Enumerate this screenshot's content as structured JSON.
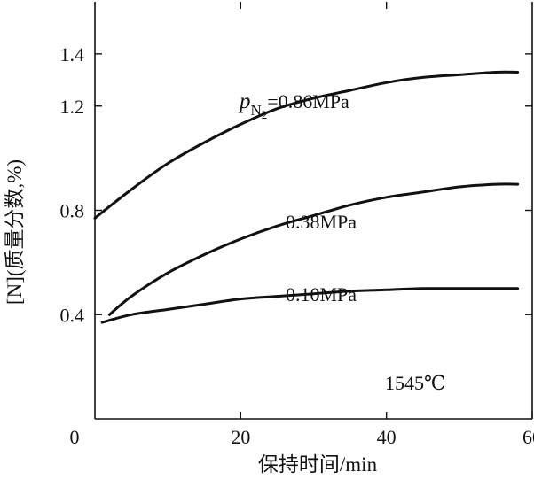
{
  "chart_data": {
    "type": "line",
    "title": "",
    "xlabel": "保持时间/min",
    "ylabel": "[N](质量分数,%)",
    "xlim": [
      0,
      60
    ],
    "ylim": [
      0,
      1.6
    ],
    "x_ticks": [
      20,
      40,
      60
    ],
    "y_ticks": [
      0.4,
      0.8,
      1.2,
      1.4
    ],
    "origin_label": "0",
    "grid": false,
    "series": [
      {
        "label_main": "0.86MPa",
        "label_prefix": "p",
        "label_sub": "N",
        "label_subsub": "2",
        "label_eq": "=",
        "x": [
          0,
          5,
          10,
          15,
          20,
          25,
          30,
          35,
          40,
          45,
          50,
          55,
          58
        ],
        "y": [
          0.77,
          0.88,
          0.98,
          1.06,
          1.13,
          1.19,
          1.23,
          1.26,
          1.29,
          1.31,
          1.32,
          1.33,
          1.33
        ]
      },
      {
        "name": "0.38MPa",
        "x": [
          2,
          5,
          10,
          15,
          20,
          25,
          30,
          35,
          40,
          45,
          50,
          55,
          58
        ],
        "y": [
          0.4,
          0.47,
          0.56,
          0.63,
          0.69,
          0.74,
          0.78,
          0.82,
          0.85,
          0.87,
          0.89,
          0.9,
          0.9
        ]
      },
      {
        "name": "0.10MPa",
        "x": [
          1,
          5,
          10,
          15,
          20,
          25,
          30,
          35,
          40,
          45,
          50,
          55,
          58
        ],
        "y": [
          0.37,
          0.4,
          0.42,
          0.44,
          0.46,
          0.47,
          0.48,
          0.49,
          0.495,
          0.5,
          0.5,
          0.5,
          0.5
        ]
      }
    ],
    "annotation": "1545℃"
  }
}
